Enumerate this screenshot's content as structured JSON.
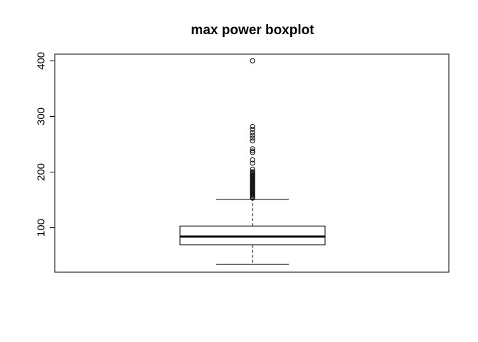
{
  "chart_data": {
    "type": "boxplot",
    "title": "max power boxplot",
    "xlabel": "",
    "ylabel": "",
    "ylim": [
      20,
      412
    ],
    "yticks": [
      100,
      200,
      300,
      400
    ],
    "grid": false,
    "box": {
      "whisker_low": 34,
      "q1": 69,
      "median": 84,
      "q3": 103,
      "whisker_high": 151
    },
    "outliers": [
      400,
      282,
      277,
      271,
      266,
      261,
      256,
      242,
      238,
      235,
      222,
      216,
      205,
      201,
      199,
      197,
      195,
      193,
      191,
      189,
      187,
      185,
      183,
      181,
      179,
      177,
      175,
      173,
      171,
      169,
      167,
      165,
      163,
      161,
      159,
      157,
      155,
      153
    ]
  }
}
